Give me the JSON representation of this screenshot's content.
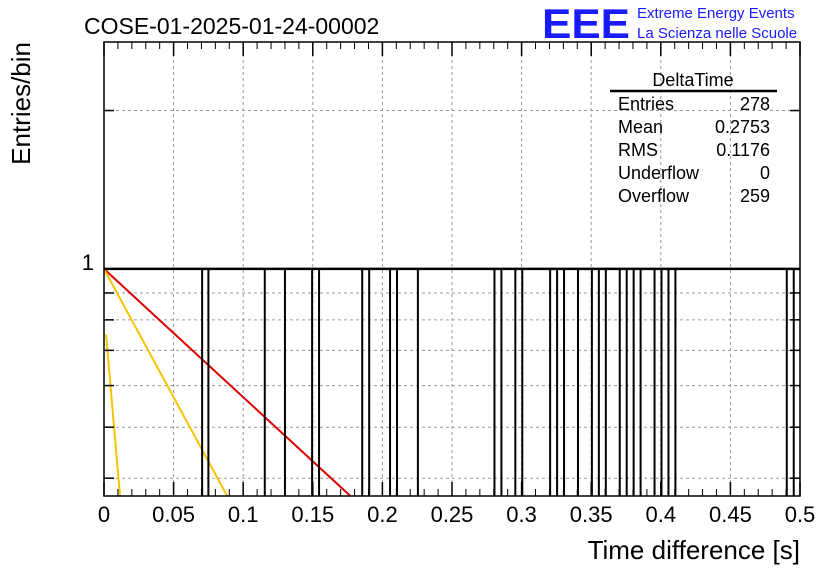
{
  "header": {
    "run_title": "COSE-01-2025-01-24-00002",
    "logo_text": "EEE",
    "logo_line1": "Extreme Energy Events",
    "logo_line2": "La Scienza nelle Scuole"
  },
  "colors": {
    "logo_blue": "#1a1aff",
    "histogram": "#000000",
    "fit_red": "#e00000",
    "fit_yellow": "#f5c400",
    "grid": "#9a9a9a"
  },
  "stats": {
    "title": "DeltaTime",
    "rows": [
      {
        "label": "Entries",
        "value": "278"
      },
      {
        "label": "Mean",
        "value": "0.2753"
      },
      {
        "label": "RMS",
        "value": "0.1176"
      },
      {
        "label": "Underflow",
        "value": "0"
      },
      {
        "label": "Overflow",
        "value": "259"
      }
    ]
  },
  "chart_data": {
    "type": "bar",
    "xlabel": "Time difference [s]",
    "ylabel": "Entries/bin",
    "xlim": [
      0,
      0.5
    ],
    "y_scale": "log",
    "ylim": [
      0.37,
      2.7
    ],
    "grid": true,
    "x_ticks": [
      "0",
      "0.05",
      "0.1",
      "0.15",
      "0.2",
      "0.25",
      "0.3",
      "0.35",
      "0.4",
      "0.45",
      "0.5"
    ],
    "y_tick_labels": [
      "1"
    ],
    "histogram_entries_x": [
      0.0705,
      0.075,
      0.1155,
      0.13,
      0.1495,
      0.1545,
      0.1855,
      0.1905,
      0.2055,
      0.2105,
      0.2255,
      0.2805,
      0.2855,
      0.2955,
      0.3005,
      0.3205,
      0.3255,
      0.3305,
      0.3405,
      0.3505,
      0.3555,
      0.3605,
      0.3705,
      0.3755,
      0.3805,
      0.3855,
      0.3955,
      0.4005,
      0.4055,
      0.4105,
      0.4905,
      0.4955
    ],
    "histogram_value": 1,
    "fit_curves": [
      {
        "color": "red",
        "x": [
          0,
          0.177
        ],
        "y": [
          1,
          0.37
        ]
      },
      {
        "color": "yellow",
        "x": [
          0,
          0.0885
        ],
        "y": [
          1,
          0.37
        ]
      },
      {
        "color": "yellow",
        "x": [
          0.0015,
          0.0115
        ],
        "y": [
          0.75,
          0.37
        ]
      }
    ]
  }
}
